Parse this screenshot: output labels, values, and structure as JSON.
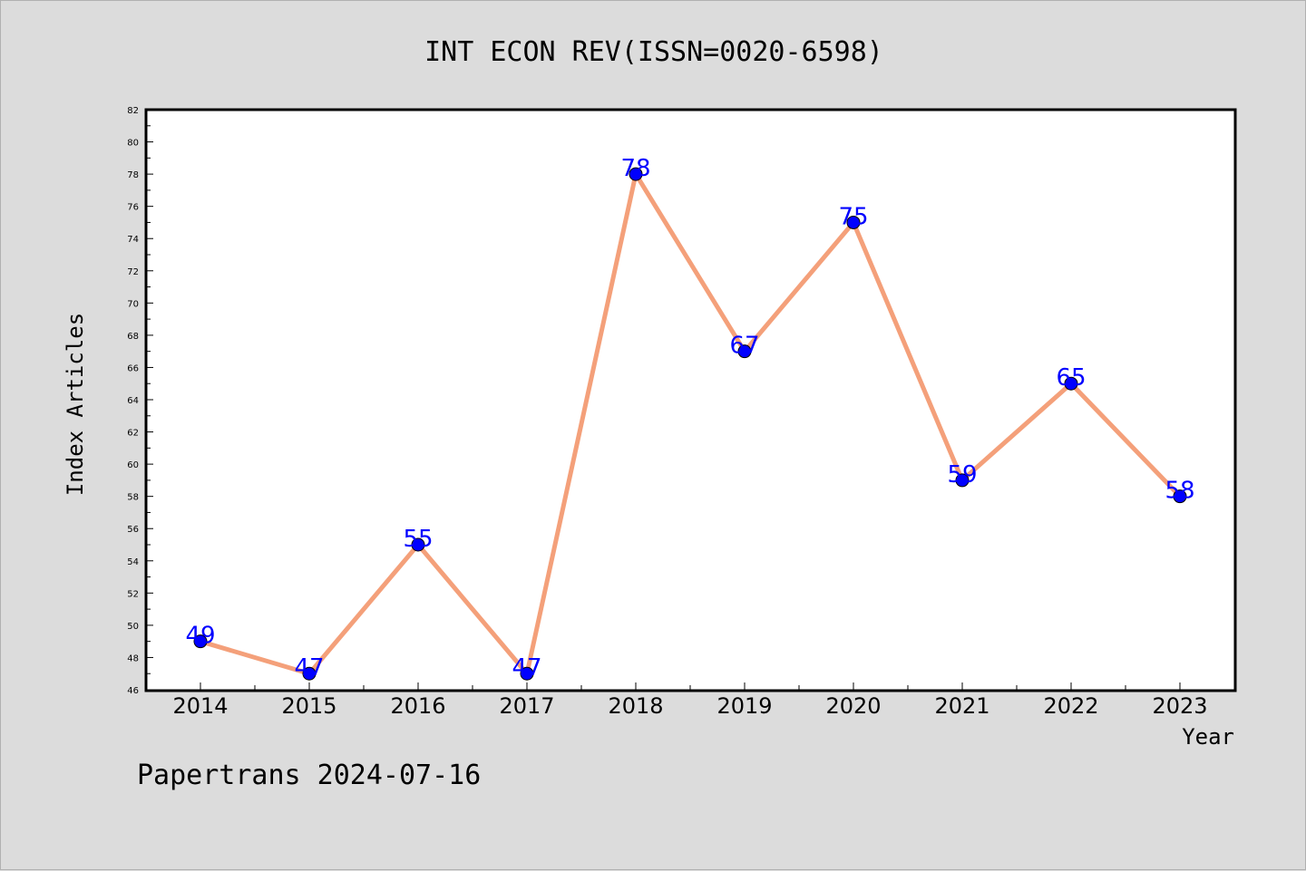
{
  "title": "INT ECON REV(ISSN=0020-6598)",
  "footer": "Papertrans 2024-07-16",
  "colors": {
    "background": "#dcdcdc",
    "plot_background": "#ffffff",
    "line": "#f4a07a",
    "marker": "#0000ff",
    "data_label": "#0000ff"
  },
  "chart_data": {
    "type": "line",
    "title": "INT ECON REV(ISSN=0020-6598)",
    "xlabel": "Year",
    "ylabel": "Index Articles",
    "categories": [
      "2014",
      "2015",
      "2016",
      "2017",
      "2018",
      "2019",
      "2020",
      "2021",
      "2022",
      "2023"
    ],
    "values": [
      49,
      47,
      55,
      47,
      78,
      67,
      75,
      59,
      65,
      58
    ],
    "ylim": [
      46,
      82
    ],
    "yticks": [
      46,
      48,
      50,
      52,
      54,
      56,
      58,
      60,
      62,
      64,
      66,
      68,
      70,
      72,
      74,
      76,
      78,
      80,
      82
    ],
    "grid": false,
    "legend": "none"
  }
}
